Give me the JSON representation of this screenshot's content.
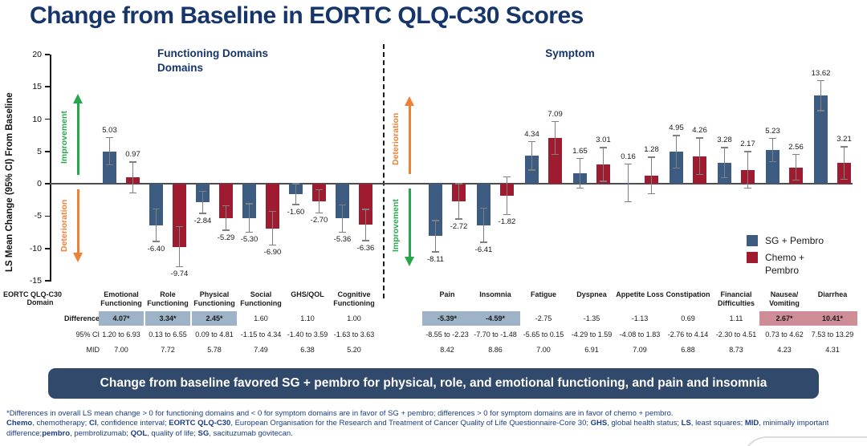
{
  "title": "Change from Baseline in EORTC QLQ-C30 Scores",
  "chart_data": {
    "type": "bar",
    "title": "Change from Baseline in EORTC QLQ-C30 Scores",
    "ylabel": "LS Mean Change (95% CI) From Baseline",
    "ylim": [
      -15,
      20
    ],
    "yticks": [
      20,
      15,
      10,
      5,
      0,
      -5,
      -10,
      -15
    ],
    "grid": false,
    "legend_position": "right-middle",
    "legend": [
      {
        "lines": [
          "SG + Pembro"
        ],
        "color": "#3D5C82"
      },
      {
        "lines": [
          "Chemo +",
          "Pembro"
        ],
        "color": "#9E1B30"
      }
    ],
    "sections": [
      {
        "header_lines": [
          "Functioning Domains",
          "Domains"
        ]
      },
      {
        "header_lines": [
          "Symptom"
        ]
      }
    ],
    "error_bar_color": "#808080",
    "categories": [
      {
        "label": [
          "Emotional",
          "Functioning"
        ],
        "section": 0,
        "sg": 5.03,
        "sg_ci": 2.2,
        "chemo": 0.97,
        "chemo_ci": 2.5,
        "diff": "4.07*",
        "hl": "blue",
        "ci95": "1.20 to 6.93",
        "mid": "7.00"
      },
      {
        "label": [
          "Role",
          "Functioning"
        ],
        "section": 0,
        "sg": -6.4,
        "sg_ci": 2.6,
        "chemo": -9.74,
        "chemo_ci": 3.2,
        "diff": "3.34*",
        "hl": "blue",
        "ci95": "0.13 to 6.55",
        "mid": "7.72"
      },
      {
        "label": [
          "Physical",
          "Functioning"
        ],
        "section": 0,
        "sg": -2.84,
        "sg_ci": 1.8,
        "chemo": -5.29,
        "chemo_ci": 2.0,
        "diff": "2.45*",
        "hl": "blue",
        "ci95": "0.09 to 4.81",
        "mid": "5.78"
      },
      {
        "label": [
          "Social",
          "Functioning"
        ],
        "section": 0,
        "sg": -5.3,
        "sg_ci": 2.3,
        "chemo": -6.9,
        "chemo_ci": 2.7,
        "diff": "1.60",
        "hl": null,
        "ci95": "-1.15 to 4.34",
        "mid": "7.49"
      },
      {
        "label": [
          "GHS/QOL"
        ],
        "section": 0,
        "sg": -1.6,
        "sg_ci": 1.7,
        "chemo": -2.7,
        "chemo_ci": 1.9,
        "diff": "1.10",
        "hl": null,
        "ci95": "-1.40 to 3.59",
        "mid": "6.38"
      },
      {
        "label": [
          "Cognitive",
          "Functioning"
        ],
        "section": 0,
        "sg": -5.36,
        "sg_ci": 2.2,
        "chemo": -6.36,
        "chemo_ci": 2.5,
        "diff": "1.00",
        "hl": null,
        "ci95": "-1.63 to 3.63",
        "mid": "5.20"
      },
      {
        "label": [
          "Pain"
        ],
        "section": 1,
        "sg": -8.11,
        "sg_ci": 2.5,
        "chemo": -2.72,
        "chemo_ci": 2.8,
        "diff": "-5.39*",
        "hl": "blue",
        "ci95": "-8.55 to -2.23",
        "mid": "8.42"
      },
      {
        "label": [
          "Insomnia"
        ],
        "section": 1,
        "sg": -6.41,
        "sg_ci": 2.7,
        "chemo": -1.82,
        "chemo_ci": 3.0,
        "diff": "-4.59*",
        "hl": "blue",
        "ci95": "-7.70 to -1.48",
        "mid": "8.86"
      },
      {
        "label": [
          "Fatigue"
        ],
        "section": 1,
        "sg": 4.34,
        "sg_ci": 2.3,
        "chemo": 7.09,
        "chemo_ci": 2.6,
        "diff": "-2.75",
        "hl": null,
        "ci95": "-5.65 to 0.15",
        "mid": "7.00"
      },
      {
        "label": [
          "Dyspnea"
        ],
        "section": 1,
        "sg": 1.65,
        "sg_ci": 2.4,
        "chemo": 3.01,
        "chemo_ci": 2.7,
        "diff": "-1.35",
        "hl": null,
        "ci95": "-4.29 to 1.59",
        "mid": "6.91"
      },
      {
        "label": [
          "Appetite Loss"
        ],
        "section": 1,
        "sg": 0.16,
        "sg_ci": 3.0,
        "chemo": 1.28,
        "chemo_ci": 2.9,
        "diff": "-1.13",
        "hl": null,
        "ci95": "-4.08 to 1.83",
        "mid": "7.09"
      },
      {
        "label": [
          "Constipation"
        ],
        "section": 1,
        "sg": 4.95,
        "sg_ci": 2.6,
        "chemo": 4.26,
        "chemo_ci": 2.9,
        "diff": "0.69",
        "hl": null,
        "ci95": "-2.76 to 4.14",
        "mid": "6.88"
      },
      {
        "label": [
          "Financial",
          "Difficulties"
        ],
        "section": 1,
        "sg": 3.28,
        "sg_ci": 2.4,
        "chemo": 2.17,
        "chemo_ci": 2.9,
        "diff": "1.11",
        "hl": null,
        "ci95": "-2.30 to 4.51",
        "mid": "8.73"
      },
      {
        "label": [
          "Nausea/",
          "Vomiting"
        ],
        "section": 1,
        "sg": 5.23,
        "sg_ci": 1.9,
        "chemo": 2.56,
        "chemo_ci": 2.1,
        "diff": "2.67*",
        "hl": "pink",
        "ci95": "0.73 to 4.62",
        "mid": "4.23"
      },
      {
        "label": [
          "Diarrhea"
        ],
        "section": 1,
        "sg": 13.62,
        "sg_ci": 2.4,
        "chemo": 3.21,
        "chemo_ci": 2.6,
        "diff": "10.41*",
        "hl": "pink",
        "ci95": "7.53 to 13.29",
        "mid": "4.31"
      }
    ]
  },
  "annotations": {
    "left_up_label": "Improvement",
    "left_down_label": "Deterioration",
    "right_up_label": "Deterioration",
    "right_down_label": "Improvement",
    "improvement_color": "#27A74B",
    "deterioration_color": "#EF7F33"
  },
  "table": {
    "row_labels": {
      "domain_line1": "EORTC QLQ-C30",
      "domain_line2": "Domain",
      "difference": "Difference",
      "ci": "95% CI",
      "mid": "MID"
    },
    "highlight_colors": {
      "blue": "#9FB3C8",
      "pink": "#CF8D98"
    }
  },
  "banner": {
    "text": "Change from baseline favored SG + pembro for physical, role, and emotional functioning, and pain and insomnia",
    "background": "#31496B"
  },
  "footnotes": {
    "line1": "*Differences in overall LS mean change > 0 for functioning domains and < 0 for symptom domains are in favor of SG + pembro; differences > 0 for symptom domains are in favor of chemo + pembro.",
    "abbrev_segments": [
      [
        "Chemo",
        1
      ],
      [
        ", chemotherapy; ",
        0
      ],
      [
        "CI",
        1
      ],
      [
        ", confidence interval; ",
        0
      ],
      [
        "EORTC QLQ-C30",
        1
      ],
      [
        ", European Organisation for the Research and Treatment of Cancer Quality of Life Questionnaire-Core 30; ",
        0
      ],
      [
        "GHS",
        1
      ],
      [
        ", global health status; ",
        0
      ],
      [
        "LS",
        1
      ],
      [
        ", least squares; ",
        0
      ],
      [
        "MID",
        1
      ],
      [
        ", minimally important difference;",
        0
      ],
      [
        "pembro",
        1
      ],
      [
        ", pembrolizumab; ",
        0
      ],
      [
        "QOL",
        1
      ],
      [
        ", quality of life; ",
        0
      ],
      [
        "SG",
        1
      ],
      [
        ", sacituzumab govitecan.",
        0
      ]
    ]
  }
}
